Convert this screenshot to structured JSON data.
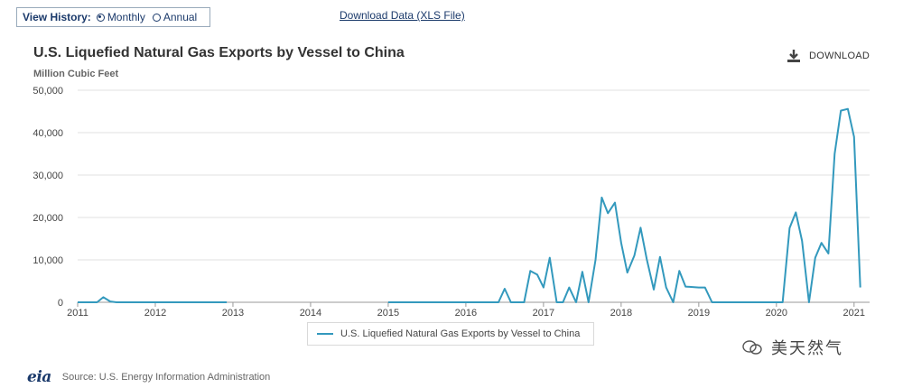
{
  "header": {
    "view_history_label": "View History:",
    "monthly_label": "Monthly",
    "annual_label": "Annual",
    "download_data_label": "Download Data (XLS File)"
  },
  "chart_title": "U.S. Liquefied Natural Gas Exports by Vessel to China",
  "chart_units": "Million Cubic Feet",
  "download_label": "DOWNLOAD",
  "legend_label": "U.S. Liquefied Natural Gas Exports by Vessel to China",
  "source_logo": "eia",
  "source_text": "Source: U.S. Energy Information Administration",
  "watermark_text": "美天然气",
  "colors": {
    "series": "#3399bd",
    "grid": "#e0e0e0",
    "accent": "#1b3a6b"
  },
  "chart_data": {
    "type": "line",
    "title": "U.S. Liquefied Natural Gas Exports by Vessel to China",
    "ylabel": "Million Cubic Feet",
    "xlabel": "",
    "xlim": [
      2011.0,
      2021.2
    ],
    "ylim": [
      0,
      50000
    ],
    "x_ticks": [
      "2011",
      "2012",
      "2013",
      "2014",
      "2015",
      "2016",
      "2017",
      "2018",
      "2019",
      "2020",
      "2021"
    ],
    "y_ticks": [
      "0",
      "10,000",
      "20,000",
      "30,000",
      "40,000",
      "50,000"
    ],
    "grid": true,
    "legend_position": "bottom",
    "series": [
      {
        "name": "U.S. Liquefied Natural Gas Exports by Vessel to China",
        "segments": [
          [
            [
              2011.0,
              0
            ],
            [
              2011.25,
              0
            ],
            [
              2011.33,
              1200
            ],
            [
              2011.42,
              200
            ],
            [
              2011.5,
              0
            ],
            [
              2012.0,
              0
            ],
            [
              2012.5,
              0
            ],
            [
              2012.92,
              0
            ]
          ],
          [
            [
              2015.0,
              0
            ],
            [
              2015.5,
              0
            ],
            [
              2016.0,
              0
            ],
            [
              2016.42,
              0
            ],
            [
              2016.5,
              3200
            ],
            [
              2016.58,
              0
            ],
            [
              2016.75,
              0
            ],
            [
              2016.83,
              7400
            ],
            [
              2016.92,
              6500
            ],
            [
              2017.0,
              3500
            ],
            [
              2017.08,
              10500
            ],
            [
              2017.17,
              0
            ],
            [
              2017.25,
              0
            ],
            [
              2017.33,
              3500
            ],
            [
              2017.42,
              0
            ],
            [
              2017.5,
              7200
            ],
            [
              2017.58,
              0
            ],
            [
              2017.67,
              10000
            ],
            [
              2017.75,
              24700
            ],
            [
              2017.83,
              21000
            ],
            [
              2017.92,
              23500
            ],
            [
              2018.0,
              14000
            ],
            [
              2018.08,
              7000
            ],
            [
              2018.17,
              11000
            ],
            [
              2018.25,
              17600
            ],
            [
              2018.33,
              10200
            ],
            [
              2018.42,
              3000
            ],
            [
              2018.5,
              10700
            ],
            [
              2018.58,
              3500
            ],
            [
              2018.67,
              0
            ],
            [
              2018.75,
              7400
            ],
            [
              2018.83,
              3700
            ],
            [
              2018.92,
              3600
            ],
            [
              2019.0,
              3500
            ],
            [
              2019.08,
              3500
            ],
            [
              2019.17,
              0
            ],
            [
              2019.25,
              0
            ],
            [
              2019.5,
              0
            ],
            [
              2019.75,
              0
            ],
            [
              2020.0,
              0
            ],
            [
              2020.08,
              0
            ],
            [
              2020.17,
              17500
            ],
            [
              2020.25,
              21200
            ],
            [
              2020.33,
              14500
            ],
            [
              2020.42,
              0
            ],
            [
              2020.5,
              10500
            ],
            [
              2020.58,
              14000
            ],
            [
              2020.67,
              11500
            ],
            [
              2020.75,
              35000
            ],
            [
              2020.83,
              45200
            ],
            [
              2020.92,
              45600
            ],
            [
              2021.0,
              39000
            ],
            [
              2021.08,
              3500
            ]
          ]
        ]
      }
    ]
  }
}
